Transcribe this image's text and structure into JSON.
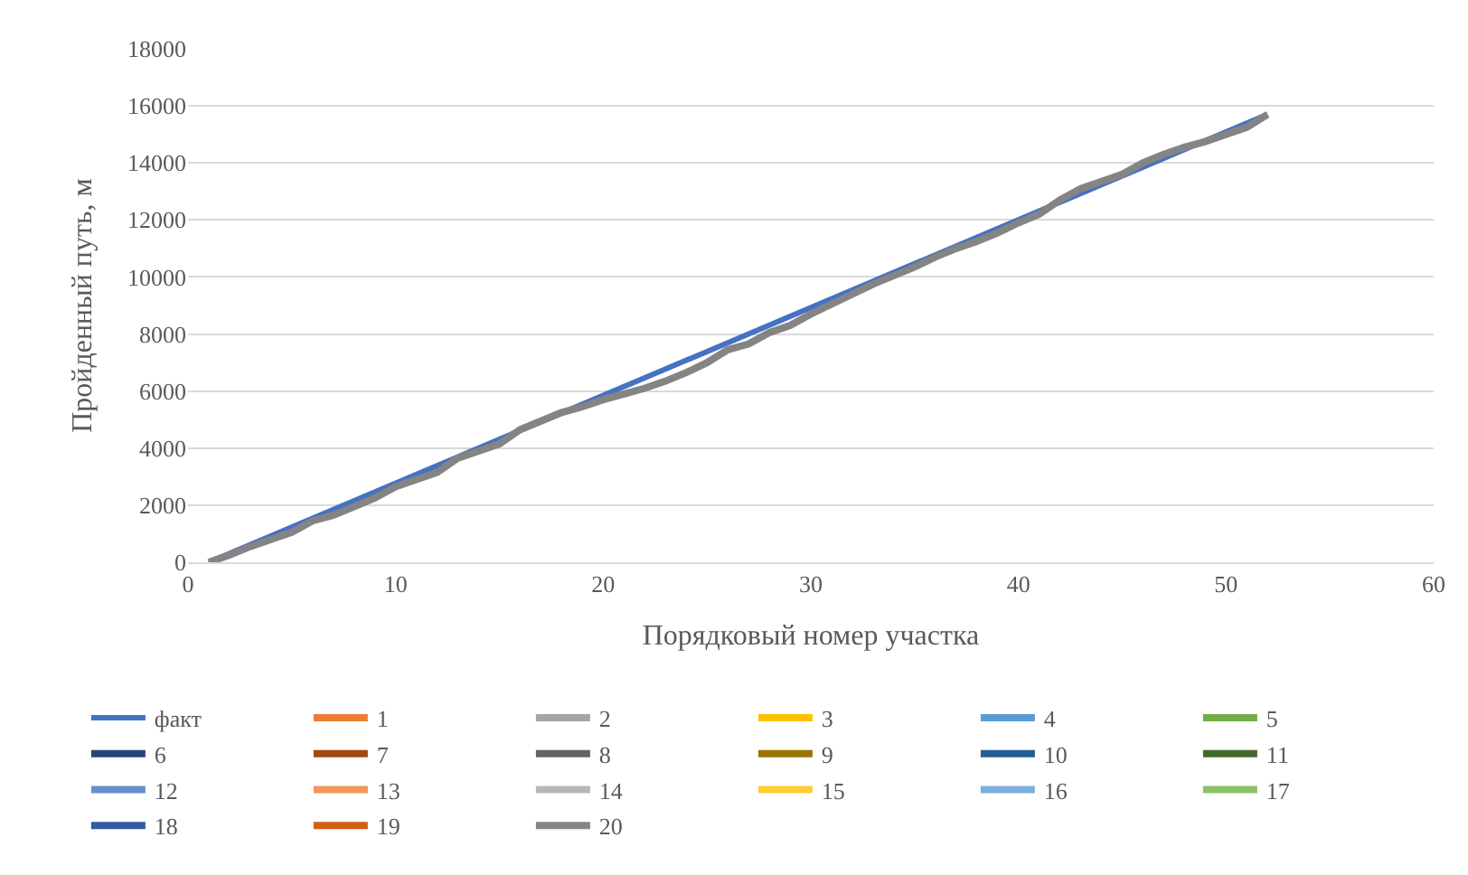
{
  "chart_data": {
    "type": "line",
    "xlabel": "Порядковый номер участка",
    "ylabel": "Пройденный путь, м",
    "x": [
      1,
      2,
      3,
      4,
      5,
      6,
      7,
      8,
      9,
      10,
      11,
      12,
      13,
      14,
      15,
      16,
      17,
      18,
      19,
      20,
      21,
      22,
      23,
      24,
      25,
      26,
      27,
      28,
      29,
      30,
      31,
      32,
      33,
      34,
      35,
      36,
      37,
      38,
      39,
      40,
      41,
      42,
      43,
      44,
      45,
      46,
      47,
      48,
      49,
      50,
      51,
      52
    ],
    "xlim": [
      0,
      60
    ],
    "xticks": [
      0,
      10,
      20,
      30,
      40,
      50,
      60
    ],
    "ylim": [
      0,
      18000
    ],
    "yticks": [
      0,
      2000,
      4000,
      6000,
      8000,
      10000,
      12000,
      14000,
      16000,
      18000
    ],
    "grid": "y",
    "legend": "bottom",
    "marker": "none",
    "line_style": "solid",
    "series": [
      {
        "name": "факт",
        "color": "#4472c4",
        "x": [
          1,
          52
        ],
        "values": [
          0,
          15700
        ]
      },
      {
        "name": "1",
        "color": "#ed7d31",
        "values": [
          null,
          null,
          null,
          null,
          null,
          null,
          null,
          null,
          null,
          null,
          null,
          null,
          null,
          null,
          null,
          null,
          null,
          null,
          null,
          null,
          null,
          null,
          null,
          null,
          null,
          null,
          null,
          null,
          null,
          null,
          null,
          null,
          null,
          null,
          null,
          null,
          null,
          null,
          null,
          null,
          null,
          null,
          null,
          null,
          null,
          null,
          null,
          null,
          null,
          null,
          null,
          null
        ]
      },
      {
        "name": "2",
        "color": "#a5a5a5",
        "values": [
          null,
          null,
          null,
          null,
          null,
          null,
          null,
          null,
          null,
          null,
          null,
          null,
          null,
          null,
          null,
          null,
          null,
          null,
          null,
          null,
          null,
          null,
          null,
          null,
          null,
          null,
          null,
          null,
          null,
          null,
          null,
          null,
          null,
          null,
          null,
          null,
          null,
          null,
          null,
          null,
          null,
          null,
          null,
          null,
          null,
          null,
          null,
          null,
          null,
          null,
          null,
          null
        ]
      },
      {
        "name": "3",
        "color": "#ffc000",
        "values": [
          null,
          null,
          null,
          null,
          null,
          null,
          null,
          null,
          null,
          null,
          null,
          null,
          null,
          null,
          null,
          null,
          null,
          null,
          null,
          null,
          null,
          null,
          null,
          null,
          null,
          null,
          null,
          null,
          null,
          null,
          null,
          null,
          null,
          null,
          null,
          null,
          null,
          null,
          null,
          null,
          null,
          null,
          null,
          null,
          null,
          null,
          null,
          null,
          null,
          null,
          null,
          null
        ]
      },
      {
        "name": "4",
        "color": "#5b9bd5",
        "values": [
          null,
          null,
          null,
          null,
          null,
          null,
          null,
          null,
          null,
          null,
          null,
          null,
          null,
          null,
          null,
          null,
          null,
          null,
          null,
          null,
          null,
          null,
          null,
          null,
          null,
          null,
          null,
          null,
          null,
          null,
          null,
          null,
          null,
          null,
          null,
          null,
          null,
          null,
          null,
          null,
          null,
          null,
          null,
          null,
          null,
          null,
          null,
          null,
          null,
          null,
          null,
          null
        ]
      },
      {
        "name": "5",
        "color": "#70ad47",
        "values": [
          null,
          null,
          null,
          null,
          null,
          null,
          null,
          null,
          null,
          null,
          null,
          null,
          null,
          null,
          null,
          null,
          null,
          null,
          null,
          null,
          null,
          null,
          null,
          null,
          null,
          null,
          null,
          null,
          null,
          null,
          null,
          null,
          null,
          null,
          null,
          null,
          null,
          null,
          null,
          null,
          null,
          null,
          null,
          null,
          null,
          null,
          null,
          null,
          null,
          null,
          null,
          null
        ]
      },
      {
        "name": "6",
        "color": "#264478",
        "values": [
          null,
          null,
          null,
          null,
          null,
          null,
          null,
          null,
          null,
          null,
          null,
          null,
          null,
          null,
          null,
          null,
          null,
          null,
          null,
          null,
          null,
          null,
          null,
          null,
          null,
          null,
          null,
          null,
          null,
          null,
          null,
          null,
          null,
          null,
          null,
          null,
          null,
          null,
          null,
          null,
          null,
          null,
          null,
          null,
          null,
          null,
          null,
          null,
          null,
          null,
          null,
          null
        ]
      },
      {
        "name": "7",
        "color": "#9e480e",
        "values": [
          null,
          null,
          null,
          null,
          null,
          null,
          null,
          null,
          null,
          null,
          null,
          null,
          null,
          null,
          null,
          null,
          null,
          null,
          null,
          null,
          null,
          null,
          null,
          null,
          null,
          null,
          null,
          null,
          null,
          null,
          null,
          null,
          null,
          null,
          null,
          null,
          null,
          null,
          null,
          null,
          null,
          null,
          null,
          null,
          null,
          null,
          null,
          null,
          null,
          null,
          null,
          null
        ]
      },
      {
        "name": "8",
        "color": "#636363",
        "values": [
          null,
          null,
          null,
          null,
          null,
          null,
          null,
          null,
          null,
          null,
          null,
          null,
          null,
          null,
          null,
          null,
          null,
          null,
          null,
          null,
          null,
          null,
          null,
          null,
          null,
          null,
          null,
          null,
          null,
          null,
          null,
          null,
          null,
          null,
          null,
          null,
          null,
          null,
          null,
          null,
          null,
          null,
          null,
          null,
          null,
          null,
          null,
          null,
          null,
          null,
          null,
          null
        ]
      },
      {
        "name": "9",
        "color": "#997300",
        "values": [
          null,
          null,
          null,
          null,
          null,
          null,
          null,
          null,
          null,
          null,
          null,
          null,
          null,
          null,
          null,
          null,
          null,
          null,
          null,
          null,
          null,
          null,
          null,
          null,
          null,
          null,
          null,
          null,
          null,
          null,
          null,
          null,
          null,
          null,
          null,
          null,
          null,
          null,
          null,
          null,
          null,
          null,
          null,
          null,
          null,
          null,
          null,
          null,
          null,
          null,
          null,
          null
        ]
      },
      {
        "name": "10",
        "color": "#255e91",
        "values": [
          null,
          null,
          null,
          null,
          null,
          null,
          null,
          null,
          null,
          null,
          null,
          null,
          null,
          null,
          null,
          null,
          null,
          null,
          null,
          null,
          null,
          null,
          null,
          null,
          null,
          null,
          null,
          null,
          null,
          null,
          null,
          null,
          null,
          null,
          null,
          null,
          null,
          null,
          null,
          null,
          null,
          null,
          null,
          null,
          null,
          null,
          null,
          null,
          null,
          null,
          null,
          null
        ]
      },
      {
        "name": "11",
        "color": "#43682b",
        "values": [
          null,
          null,
          null,
          null,
          null,
          null,
          null,
          null,
          null,
          null,
          null,
          null,
          null,
          null,
          null,
          null,
          null,
          null,
          null,
          null,
          null,
          null,
          null,
          null,
          null,
          null,
          null,
          null,
          null,
          null,
          null,
          null,
          null,
          null,
          null,
          null,
          null,
          null,
          null,
          null,
          null,
          null,
          null,
          null,
          null,
          null,
          null,
          null,
          null,
          null,
          null,
          null
        ]
      },
      {
        "name": "12",
        "color": "#698ed0",
        "values": [
          null,
          null,
          null,
          null,
          null,
          null,
          null,
          null,
          null,
          null,
          null,
          null,
          null,
          null,
          null,
          null,
          null,
          null,
          null,
          null,
          null,
          null,
          null,
          null,
          null,
          null,
          null,
          null,
          null,
          null,
          null,
          null,
          null,
          null,
          null,
          null,
          null,
          null,
          null,
          null,
          null,
          null,
          null,
          null,
          null,
          null,
          null,
          null,
          null,
          null,
          null,
          null
        ]
      },
      {
        "name": "13",
        "color": "#f1975a",
        "values": [
          null,
          null,
          null,
          null,
          null,
          null,
          null,
          null,
          null,
          null,
          null,
          null,
          null,
          null,
          null,
          null,
          null,
          null,
          null,
          null,
          null,
          null,
          null,
          null,
          null,
          null,
          null,
          null,
          null,
          null,
          null,
          null,
          null,
          null,
          null,
          null,
          null,
          null,
          null,
          null,
          null,
          null,
          null,
          null,
          null,
          null,
          null,
          null,
          null,
          null,
          null,
          null
        ]
      },
      {
        "name": "14",
        "color": "#b7b7b7",
        "values": [
          null,
          null,
          null,
          null,
          null,
          null,
          null,
          null,
          null,
          null,
          null,
          null,
          null,
          null,
          null,
          null,
          null,
          null,
          null,
          null,
          null,
          null,
          null,
          null,
          null,
          null,
          null,
          null,
          null,
          null,
          null,
          null,
          null,
          null,
          null,
          null,
          null,
          null,
          null,
          null,
          null,
          null,
          null,
          null,
          null,
          null,
          null,
          null,
          null,
          null,
          null,
          null
        ]
      },
      {
        "name": "15",
        "color": "#ffcd33",
        "values": [
          null,
          null,
          null,
          null,
          null,
          null,
          null,
          null,
          null,
          null,
          null,
          null,
          null,
          null,
          null,
          null,
          null,
          null,
          null,
          null,
          null,
          null,
          null,
          null,
          null,
          null,
          null,
          null,
          null,
          null,
          null,
          null,
          null,
          null,
          null,
          null,
          null,
          null,
          null,
          null,
          null,
          null,
          null,
          null,
          null,
          null,
          null,
          null,
          null,
          null,
          null,
          null
        ]
      },
      {
        "name": "16",
        "color": "#7cafdd",
        "values": [
          null,
          null,
          null,
          null,
          null,
          null,
          null,
          null,
          null,
          null,
          null,
          null,
          null,
          null,
          null,
          null,
          null,
          null,
          null,
          null,
          null,
          null,
          null,
          null,
          null,
          null,
          null,
          null,
          null,
          null,
          null,
          null,
          null,
          null,
          null,
          null,
          null,
          null,
          null,
          null,
          null,
          null,
          null,
          null,
          null,
          null,
          null,
          null,
          null,
          null,
          null,
          null
        ]
      },
      {
        "name": "17",
        "color": "#8cc168",
        "values": [
          null,
          null,
          null,
          null,
          null,
          null,
          null,
          null,
          null,
          null,
          null,
          null,
          null,
          null,
          null,
          null,
          null,
          null,
          null,
          null,
          null,
          null,
          null,
          null,
          null,
          null,
          null,
          null,
          null,
          null,
          null,
          null,
          null,
          null,
          null,
          null,
          null,
          null,
          null,
          null,
          null,
          null,
          null,
          null,
          null,
          null,
          null,
          null,
          null,
          null,
          null,
          null
        ]
      },
      {
        "name": "18",
        "color": "#335aa1",
        "values": [
          null,
          null,
          null,
          null,
          null,
          null,
          null,
          null,
          null,
          null,
          null,
          null,
          null,
          null,
          null,
          null,
          null,
          null,
          null,
          null,
          null,
          null,
          null,
          null,
          null,
          null,
          null,
          null,
          null,
          null,
          null,
          null,
          null,
          null,
          null,
          null,
          null,
          null,
          null,
          null,
          null,
          null,
          null,
          null,
          null,
          null,
          null,
          null,
          null,
          null,
          null,
          null
        ]
      },
      {
        "name": "19",
        "color": "#d26012",
        "values": [
          null,
          null,
          null,
          null,
          null,
          null,
          null,
          null,
          null,
          null,
          null,
          null,
          null,
          null,
          null,
          null,
          null,
          null,
          null,
          null,
          null,
          null,
          null,
          null,
          null,
          null,
          null,
          null,
          null,
          null,
          null,
          null,
          null,
          null,
          null,
          null,
          null,
          null,
          null,
          null,
          null,
          null,
          null,
          null,
          null,
          null,
          null,
          null,
          null,
          null,
          null,
          null
        ]
      },
      {
        "name": "20",
        "color": "#848484",
        "values": [
          0,
          250,
          550,
          800,
          1050,
          1450,
          1650,
          1950,
          2250,
          2650,
          2900,
          3150,
          3650,
          3900,
          4150,
          4650,
          4950,
          5250,
          5450,
          5700,
          5900,
          6100,
          6350,
          6650,
          7000,
          7450,
          7650,
          8050,
          8300,
          8700,
          9050,
          9400,
          9750,
          10050,
          10350,
          10700,
          11000,
          11250,
          11550,
          11900,
          12200,
          12700,
          13100,
          13350,
          13600,
          14000,
          14300,
          14550,
          14750,
          15000,
          15250,
          15700
        ]
      }
    ]
  }
}
